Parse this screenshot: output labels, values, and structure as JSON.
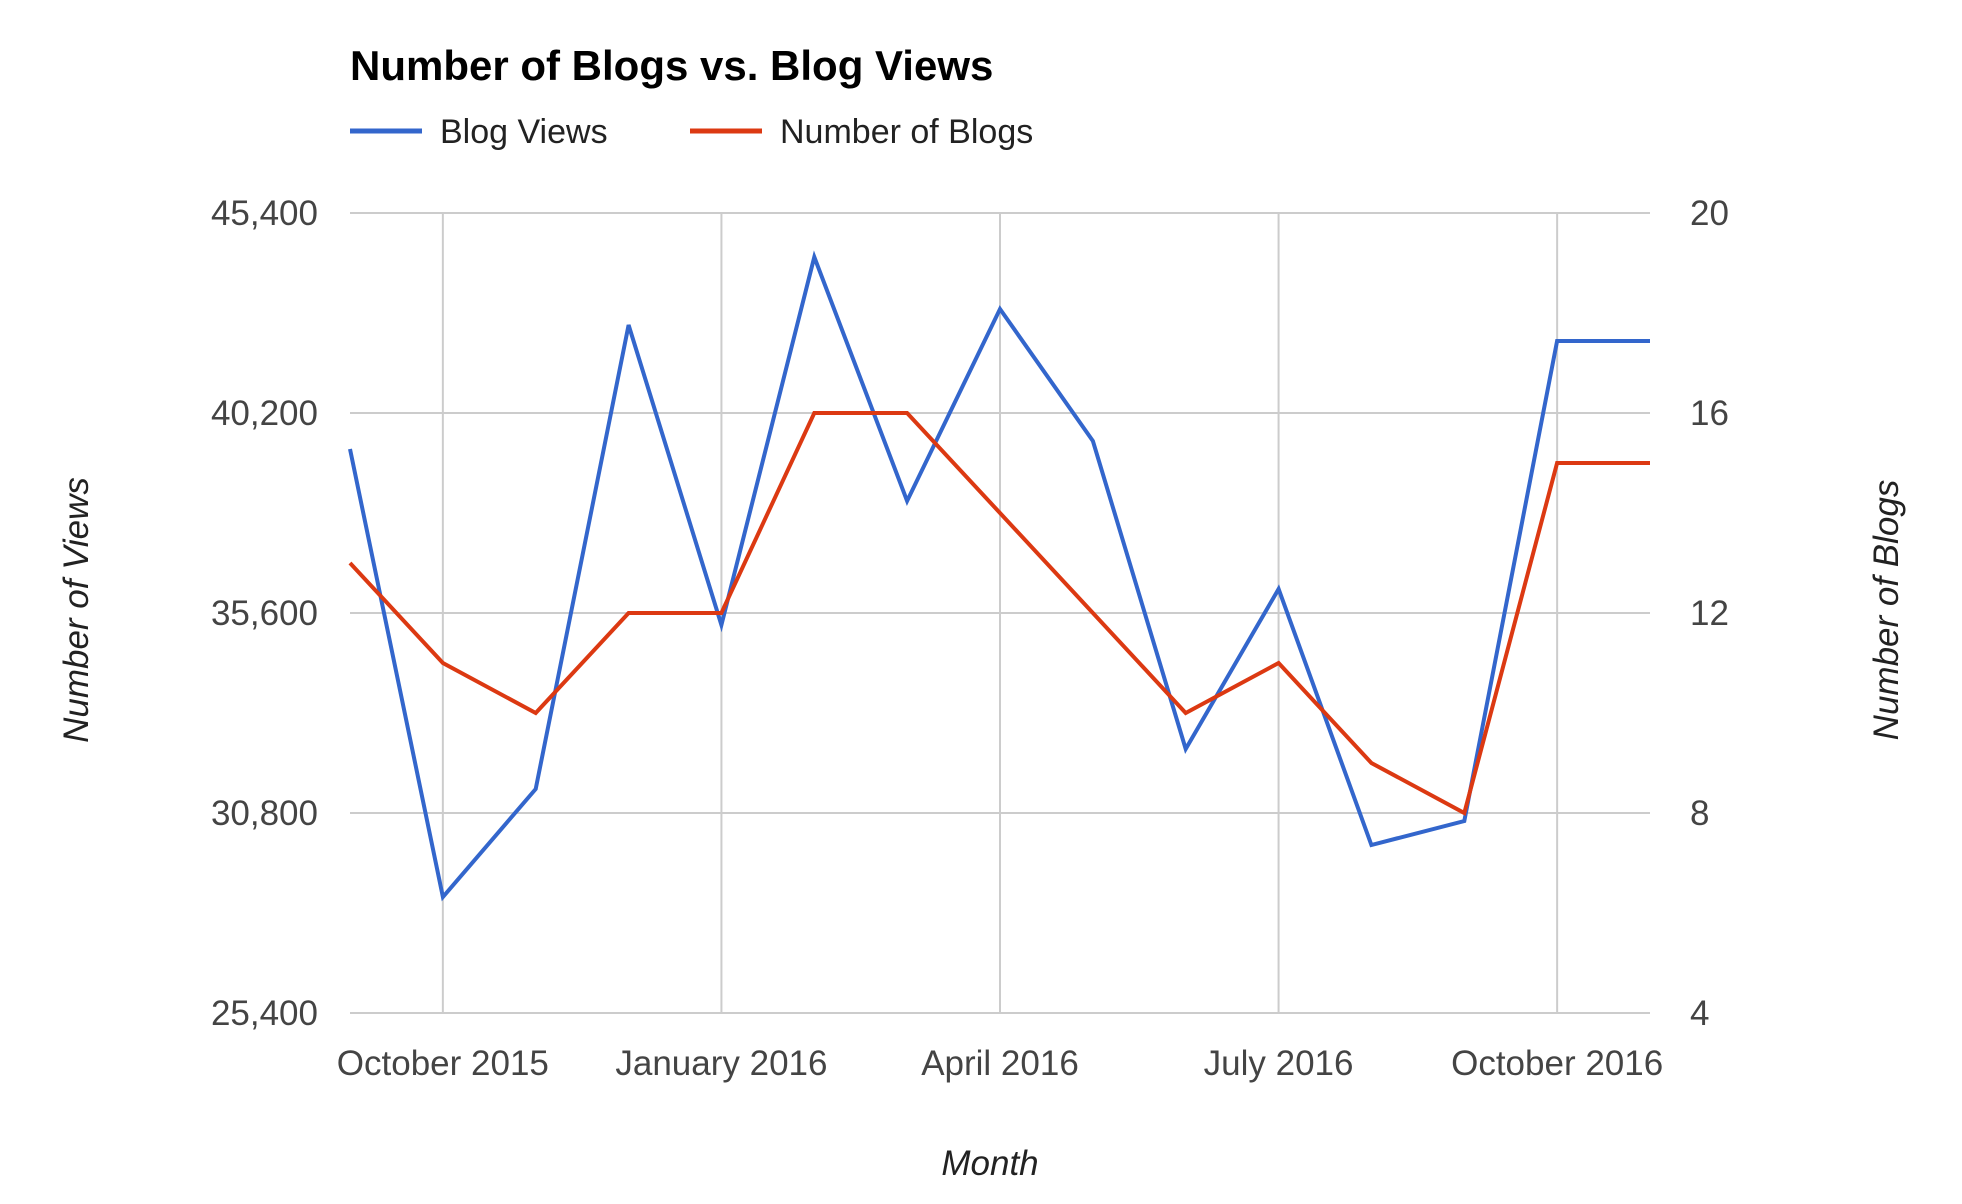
{
  "chart_data": {
    "type": "line",
    "title": "Number of Blogs vs. Blog Views",
    "xlabel": "Month",
    "ylabel_left": "Number of Views",
    "ylabel_right": "Number of Blogs",
    "x_tick_labels": [
      "October 2015",
      "January 2016",
      "April 2016",
      "July 2016",
      "October 2016"
    ],
    "x": [
      "2015-09",
      "2015-10",
      "2015-11",
      "2015-12",
      "2016-01",
      "2016-02",
      "2016-03",
      "2016-04",
      "2016-05",
      "2016-06",
      "2016-07",
      "2016-08",
      "2016-09",
      "2016-10",
      "2016-11"
    ],
    "ylim_left": [
      25400,
      45400
    ],
    "yticks_left": [
      "45,400",
      "40,200",
      "35,600",
      "30,800",
      "25,400"
    ],
    "ylim_right": [
      4,
      20
    ],
    "yticks_right": [
      "20",
      "16",
      "12",
      "8",
      "4"
    ],
    "grid": true,
    "legend_position": "top-left",
    "series": [
      {
        "name": "Blog Views",
        "axis": "left",
        "color": "#3366cc",
        "values": [
          39500,
          28300,
          31000,
          42600,
          35100,
          44300,
          38200,
          43000,
          39700,
          32000,
          36000,
          29600,
          30200,
          42200,
          42200
        ]
      },
      {
        "name": "Number of Blogs",
        "axis": "right",
        "color": "#dc3912",
        "values": [
          13,
          11,
          10,
          12,
          12,
          16,
          16,
          14,
          12,
          10,
          11,
          9,
          8,
          15,
          15
        ]
      }
    ]
  }
}
